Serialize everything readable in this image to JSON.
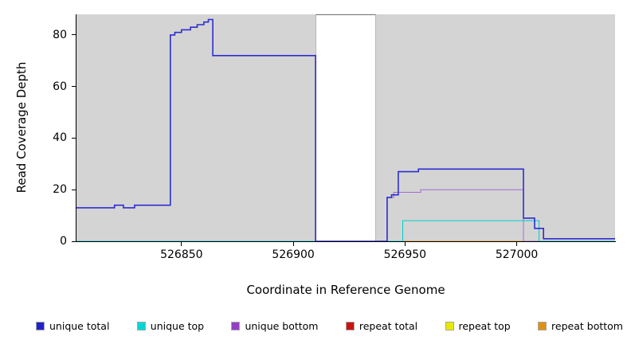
{
  "figure": {
    "plot_bg": "#d4d4d4",
    "y_axis": {
      "label": "Read Coverage Depth",
      "ticks": [
        0,
        20,
        40,
        60,
        80
      ]
    },
    "x_axis": {
      "label": "Coordinate in Reference Genome",
      "ticks": [
        526850,
        526900,
        526950,
        527000
      ]
    }
  },
  "chart_data": {
    "type": "line",
    "title": "",
    "xlabel": "Coordinate in Reference Genome",
    "ylabel": "Read Coverage Depth",
    "xlim": [
      526803,
      527044
    ],
    "ylim": [
      0,
      88
    ],
    "grid": false,
    "legend_position": "bottom",
    "plot_background": "#d4d4d4",
    "uncovered_gap_x": [
      526910,
      526937
    ],
    "series": [
      {
        "name": "repeat total",
        "color": "#cc1111",
        "width": 1,
        "steps": [
          [
            526803,
            0
          ]
        ]
      },
      {
        "name": "repeat top",
        "color": "#e8e800",
        "width": 1,
        "steps": [
          [
            526803,
            0
          ]
        ]
      },
      {
        "name": "repeat bottom",
        "color": "#e09010",
        "width": 1,
        "steps": [
          [
            526803,
            0
          ]
        ]
      },
      {
        "name": "unique bottom",
        "color": "#a06cd0",
        "width": 1,
        "steps": [
          [
            526803,
            0
          ],
          [
            526942,
            17
          ],
          [
            526945,
            19
          ],
          [
            526957,
            20
          ],
          [
            527003,
            0
          ]
        ]
      },
      {
        "name": "unique top",
        "color": "#00cdcd",
        "width": 1,
        "steps": [
          [
            526803,
            0
          ],
          [
            526949,
            8
          ],
          [
            527010,
            0
          ]
        ]
      },
      {
        "name": "unique total",
        "color": "#2d2dd0",
        "width": 1.6,
        "steps": [
          [
            526803,
            13
          ],
          [
            526820,
            14
          ],
          [
            526824,
            13
          ],
          [
            526829,
            14
          ],
          [
            526845,
            80
          ],
          [
            526847,
            81
          ],
          [
            526850,
            82
          ],
          [
            526854,
            83
          ],
          [
            526857,
            84
          ],
          [
            526860,
            85
          ],
          [
            526862,
            86
          ],
          [
            526864,
            72
          ],
          [
            526910,
            0
          ],
          [
            526942,
            17
          ],
          [
            526944,
            18
          ],
          [
            526947,
            27
          ],
          [
            526956,
            28
          ],
          [
            527003,
            9
          ],
          [
            527008,
            5
          ],
          [
            527012,
            1
          ]
        ]
      }
    ]
  },
  "legend": {
    "items": [
      {
        "label": "unique total",
        "color": "#2222cc"
      },
      {
        "label": "unique top",
        "color": "#00d5d5"
      },
      {
        "label": "unique bottom",
        "color": "#9440c4"
      },
      {
        "label": "repeat total",
        "color": "#cc1111"
      },
      {
        "label": "repeat top",
        "color": "#e8e800"
      },
      {
        "label": "repeat bottom",
        "color": "#e09010"
      }
    ]
  }
}
